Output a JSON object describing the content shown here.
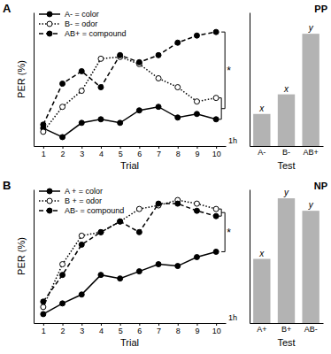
{
  "chart_data": [
    {
      "type": "line",
      "panel_label": "A",
      "title": "PP",
      "x_label": "Trial",
      "y_label": "PER (%)",
      "x": [
        1,
        2,
        3,
        4,
        5,
        6,
        7,
        8,
        9,
        10
      ],
      "xlim": [
        0.5,
        10.5
      ],
      "xticks": [
        1,
        2,
        3,
        4,
        5,
        6,
        7,
        8,
        9,
        10
      ],
      "ylim": [
        0,
        75
      ],
      "tick_labels": "x",
      "legend": "upper left",
      "annotations": [
        "*"
      ],
      "series": [
        {
          "name": "A- = color",
          "color": "#000000",
          "marker": "filled-circle",
          "line_style": "solid",
          "values": [
            10,
            5,
            13,
            15,
            13,
            20,
            22,
            16,
            18,
            15
          ]
        },
        {
          "name": "B- = odor",
          "color": "#000000",
          "marker": "open-circle",
          "line_style": "dotted",
          "values": [
            8,
            22,
            31,
            49,
            50,
            46,
            38,
            33,
            25,
            27
          ]
        },
        {
          "name": "AB+ = compound",
          "color": "#000000",
          "marker": "filled-circle",
          "line_style": "dashed",
          "values": [
            12,
            35,
            42,
            33,
            51,
            47,
            51,
            58,
            62,
            64
          ]
        }
      ]
    },
    {
      "type": "bar",
      "x_label": "Test",
      "categories": [
        "A-",
        "B-",
        "AB+"
      ],
      "values": [
        18,
        29,
        63
      ],
      "color": "#b3b3b3",
      "ylim": [
        0,
        75
      ],
      "tick_labels": "x",
      "bar_letters": [
        "x",
        "x",
        "y"
      ],
      "annotations": [
        "1h"
      ]
    },
    {
      "type": "line",
      "panel_label": "B",
      "title": "NP",
      "x_label": "Trial",
      "y_label": "PER (%)",
      "x": [
        1,
        2,
        3,
        4,
        5,
        6,
        7,
        8,
        9,
        10
      ],
      "xlim": [
        0.5,
        10.5
      ],
      "xticks": [
        1,
        2,
        3,
        4,
        5,
        6,
        7,
        8,
        9,
        10
      ],
      "ylim": [
        0,
        75
      ],
      "tick_labels": "x",
      "legend": "upper left",
      "annotations": [
        "*"
      ],
      "series": [
        {
          "name": "A + = color",
          "color": "#000000",
          "marker": "filled-circle",
          "line_style": "solid",
          "values": [
            5,
            11,
            16,
            27,
            25,
            29,
            33,
            32,
            37,
            40
          ]
        },
        {
          "name": "B + = odor",
          "color": "#000000",
          "marker": "open-circle",
          "line_style": "dotted",
          "values": [
            9,
            33,
            49,
            51,
            57,
            64,
            66,
            69,
            67,
            64
          ]
        },
        {
          "name": "AB- = compound",
          "color": "#000000",
          "marker": "filled-circle",
          "line_style": "dashed",
          "values": [
            12,
            27,
            44,
            51,
            57,
            51,
            67,
            67,
            63,
            60
          ]
        }
      ]
    },
    {
      "type": "bar",
      "x_label": "Test",
      "categories": [
        "A+",
        "B+",
        "AB-"
      ],
      "values": [
        36,
        70,
        63
      ],
      "color": "#b3b3b3",
      "ylim": [
        0,
        75
      ],
      "tick_labels": "x",
      "bar_letters": [
        "x",
        "y",
        "y"
      ],
      "annotations": [
        "1h"
      ]
    }
  ]
}
